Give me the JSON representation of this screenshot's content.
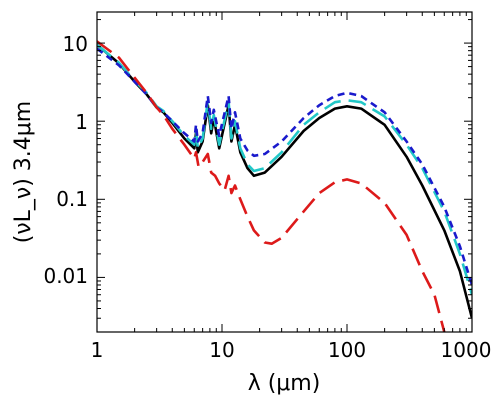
{
  "chart_data": {
    "type": "line",
    "xscale": "log",
    "yscale": "log",
    "xlim": [
      1,
      1000
    ],
    "ylim": [
      0.002,
      25
    ],
    "xlabel": "λ (μm)",
    "ylabel": "(νL_ν) 3.4μm",
    "xticks": [
      "1",
      "10",
      "100",
      "1000"
    ],
    "yticks": [
      "0.01",
      "0.1",
      "1",
      "10"
    ],
    "grid": false,
    "series": [
      {
        "color": "#000000",
        "dash": "solid",
        "points": [
          [
            1,
            9.5
          ],
          [
            1.5,
            5.5
          ],
          [
            2,
            3.2
          ],
          [
            2.5,
            2.2
          ],
          [
            3,
            1.5
          ],
          [
            3.4,
            1.3
          ],
          [
            4,
            0.95
          ],
          [
            5,
            0.6
          ],
          [
            6,
            0.45
          ],
          [
            6.2,
            0.7
          ],
          [
            6.4,
            0.4
          ],
          [
            7,
            0.55
          ],
          [
            7.7,
            1.6
          ],
          [
            8.2,
            0.7
          ],
          [
            8.6,
            1.1
          ],
          [
            9.5,
            0.45
          ],
          [
            11.3,
            1.6
          ],
          [
            11.9,
            0.55
          ],
          [
            12.7,
            0.9
          ],
          [
            14,
            0.4
          ],
          [
            16,
            0.25
          ],
          [
            18,
            0.2
          ],
          [
            22,
            0.22
          ],
          [
            30,
            0.35
          ],
          [
            45,
            0.75
          ],
          [
            60,
            1.1
          ],
          [
            80,
            1.45
          ],
          [
            100,
            1.55
          ],
          [
            130,
            1.45
          ],
          [
            200,
            0.9
          ],
          [
            300,
            0.35
          ],
          [
            400,
            0.15
          ],
          [
            600,
            0.04
          ],
          [
            800,
            0.012
          ],
          [
            1000,
            0.003
          ]
        ]
      },
      {
        "color": "#22c8c8",
        "dash": "long-dash",
        "points": [
          [
            1,
            9.5
          ],
          [
            1.5,
            5.6
          ],
          [
            2,
            3.3
          ],
          [
            2.5,
            2.3
          ],
          [
            3,
            1.55
          ],
          [
            3.4,
            1.35
          ],
          [
            4,
            1
          ],
          [
            5,
            0.65
          ],
          [
            6,
            0.5
          ],
          [
            6.2,
            0.8
          ],
          [
            6.4,
            0.45
          ],
          [
            7,
            0.6
          ],
          [
            7.7,
            1.8
          ],
          [
            8.2,
            0.8
          ],
          [
            8.6,
            1.2
          ],
          [
            9.5,
            0.5
          ],
          [
            11.3,
            1.8
          ],
          [
            11.9,
            0.6
          ],
          [
            12.7,
            1
          ],
          [
            14,
            0.45
          ],
          [
            16,
            0.28
          ],
          [
            18,
            0.23
          ],
          [
            22,
            0.25
          ],
          [
            30,
            0.4
          ],
          [
            45,
            0.9
          ],
          [
            60,
            1.3
          ],
          [
            80,
            1.75
          ],
          [
            100,
            1.85
          ],
          [
            130,
            1.75
          ],
          [
            200,
            1.15
          ],
          [
            300,
            0.5
          ],
          [
            400,
            0.25
          ],
          [
            600,
            0.07
          ],
          [
            800,
            0.02
          ],
          [
            1000,
            0.006
          ]
        ]
      },
      {
        "color": "#1a1acc",
        "dash": "short-dash",
        "points": [
          [
            1,
            8.5
          ],
          [
            1.5,
            5.2
          ],
          [
            2,
            3.2
          ],
          [
            2.5,
            2.2
          ],
          [
            3,
            1.5
          ],
          [
            3.4,
            1.3
          ],
          [
            4,
            1
          ],
          [
            5,
            0.7
          ],
          [
            6,
            0.55
          ],
          [
            6.2,
            0.9
          ],
          [
            6.4,
            0.55
          ],
          [
            7,
            0.7
          ],
          [
            7.7,
            2.1
          ],
          [
            8.2,
            0.95
          ],
          [
            8.6,
            1.4
          ],
          [
            9.5,
            0.65
          ],
          [
            11.3,
            2.1
          ],
          [
            11.9,
            0.8
          ],
          [
            12.7,
            1.3
          ],
          [
            14,
            0.6
          ],
          [
            16,
            0.42
          ],
          [
            18,
            0.36
          ],
          [
            22,
            0.38
          ],
          [
            30,
            0.55
          ],
          [
            45,
            1.1
          ],
          [
            60,
            1.6
          ],
          [
            80,
            2.1
          ],
          [
            100,
            2.3
          ],
          [
            130,
            2.1
          ],
          [
            200,
            1.3
          ],
          [
            300,
            0.55
          ],
          [
            400,
            0.28
          ],
          [
            600,
            0.08
          ],
          [
            800,
            0.025
          ],
          [
            1000,
            0.008
          ]
        ]
      },
      {
        "color": "#dd1a1a",
        "dash": "long-dash",
        "points": [
          [
            1,
            10.5
          ],
          [
            1.5,
            6.5
          ],
          [
            2,
            3.6
          ],
          [
            2.5,
            2.3
          ],
          [
            3,
            1.5
          ],
          [
            3.4,
            1.2
          ],
          [
            4,
            0.8
          ],
          [
            5,
            0.5
          ],
          [
            6,
            0.33
          ],
          [
            6.2,
            0.4
          ],
          [
            6.5,
            0.26
          ],
          [
            7,
            0.3
          ],
          [
            7.7,
            0.38
          ],
          [
            8.2,
            0.22
          ],
          [
            8.8,
            0.2
          ],
          [
            9.5,
            0.16
          ],
          [
            10.5,
            0.13
          ],
          [
            11.3,
            0.2
          ],
          [
            11.9,
            0.12
          ],
          [
            12.7,
            0.15
          ],
          [
            14,
            0.1
          ],
          [
            16,
            0.06
          ],
          [
            18,
            0.04
          ],
          [
            22,
            0.028
          ],
          [
            25,
            0.027
          ],
          [
            30,
            0.032
          ],
          [
            45,
            0.07
          ],
          [
            60,
            0.12
          ],
          [
            80,
            0.165
          ],
          [
            100,
            0.18
          ],
          [
            130,
            0.16
          ],
          [
            200,
            0.09
          ],
          [
            300,
            0.035
          ],
          [
            400,
            0.012
          ],
          [
            500,
            0.006
          ],
          [
            600,
            0.002
          ]
        ]
      }
    ]
  }
}
